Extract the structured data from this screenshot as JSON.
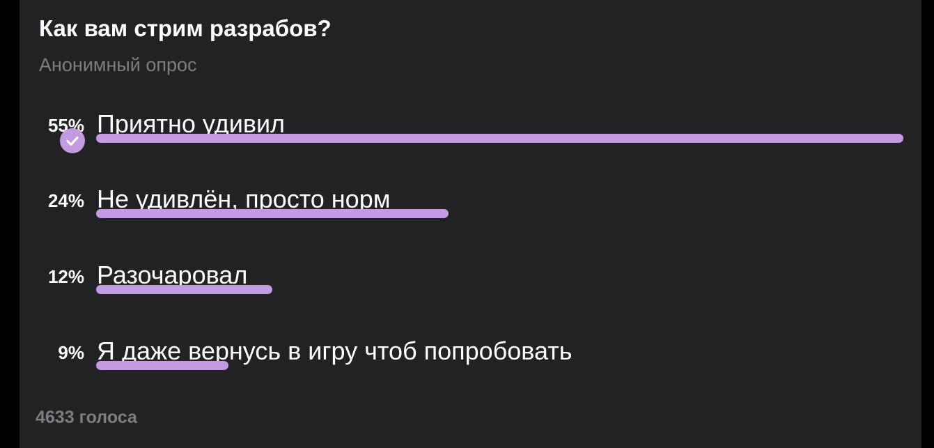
{
  "poll": {
    "question": "Как вам стрим разрабов?",
    "type_label": "Анонимный опрос",
    "accent_color": "#c39be0",
    "options": [
      {
        "percent_label": "55%",
        "percent": 55,
        "text": "Приятно удивил",
        "chosen": true
      },
      {
        "percent_label": "24%",
        "percent": 24,
        "text": "Не удивлён, просто норм",
        "chosen": false
      },
      {
        "percent_label": "12%",
        "percent": 12,
        "text": "Разочаровал",
        "chosen": false
      },
      {
        "percent_label": "9%",
        "percent": 9,
        "text": "Я даже вернусь в игру чтоб попробовать",
        "chosen": false
      }
    ],
    "votes_label": "4633 голоса",
    "chosen_icon": "check-circle-icon"
  }
}
